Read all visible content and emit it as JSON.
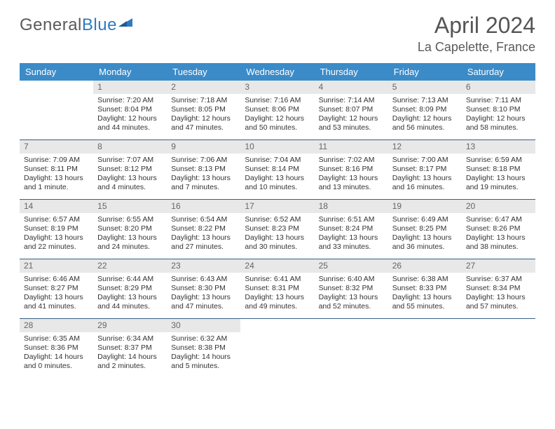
{
  "logo": {
    "text1": "General",
    "text2": "Blue"
  },
  "title": "April 2024",
  "location": "La Capelette, France",
  "colors": {
    "header_bg": "#3b8bc8",
    "header_text": "#ffffff",
    "daynum_bg": "#e8e8e8",
    "daynum_text": "#666666",
    "week_border": "#385f86",
    "logo_gray": "#5a5a5a",
    "logo_blue": "#2f7bbf"
  },
  "day_names": [
    "Sunday",
    "Monday",
    "Tuesday",
    "Wednesday",
    "Thursday",
    "Friday",
    "Saturday"
  ],
  "weeks": [
    [
      {
        "num": "",
        "sunrise": "",
        "sunset": "",
        "daylight1": "",
        "daylight2": ""
      },
      {
        "num": "1",
        "sunrise": "Sunrise: 7:20 AM",
        "sunset": "Sunset: 8:04 PM",
        "daylight1": "Daylight: 12 hours",
        "daylight2": "and 44 minutes."
      },
      {
        "num": "2",
        "sunrise": "Sunrise: 7:18 AM",
        "sunset": "Sunset: 8:05 PM",
        "daylight1": "Daylight: 12 hours",
        "daylight2": "and 47 minutes."
      },
      {
        "num": "3",
        "sunrise": "Sunrise: 7:16 AM",
        "sunset": "Sunset: 8:06 PM",
        "daylight1": "Daylight: 12 hours",
        "daylight2": "and 50 minutes."
      },
      {
        "num": "4",
        "sunrise": "Sunrise: 7:14 AM",
        "sunset": "Sunset: 8:07 PM",
        "daylight1": "Daylight: 12 hours",
        "daylight2": "and 53 minutes."
      },
      {
        "num": "5",
        "sunrise": "Sunrise: 7:13 AM",
        "sunset": "Sunset: 8:09 PM",
        "daylight1": "Daylight: 12 hours",
        "daylight2": "and 56 minutes."
      },
      {
        "num": "6",
        "sunrise": "Sunrise: 7:11 AM",
        "sunset": "Sunset: 8:10 PM",
        "daylight1": "Daylight: 12 hours",
        "daylight2": "and 58 minutes."
      }
    ],
    [
      {
        "num": "7",
        "sunrise": "Sunrise: 7:09 AM",
        "sunset": "Sunset: 8:11 PM",
        "daylight1": "Daylight: 13 hours",
        "daylight2": "and 1 minute."
      },
      {
        "num": "8",
        "sunrise": "Sunrise: 7:07 AM",
        "sunset": "Sunset: 8:12 PM",
        "daylight1": "Daylight: 13 hours",
        "daylight2": "and 4 minutes."
      },
      {
        "num": "9",
        "sunrise": "Sunrise: 7:06 AM",
        "sunset": "Sunset: 8:13 PM",
        "daylight1": "Daylight: 13 hours",
        "daylight2": "and 7 minutes."
      },
      {
        "num": "10",
        "sunrise": "Sunrise: 7:04 AM",
        "sunset": "Sunset: 8:14 PM",
        "daylight1": "Daylight: 13 hours",
        "daylight2": "and 10 minutes."
      },
      {
        "num": "11",
        "sunrise": "Sunrise: 7:02 AM",
        "sunset": "Sunset: 8:16 PM",
        "daylight1": "Daylight: 13 hours",
        "daylight2": "and 13 minutes."
      },
      {
        "num": "12",
        "sunrise": "Sunrise: 7:00 AM",
        "sunset": "Sunset: 8:17 PM",
        "daylight1": "Daylight: 13 hours",
        "daylight2": "and 16 minutes."
      },
      {
        "num": "13",
        "sunrise": "Sunrise: 6:59 AM",
        "sunset": "Sunset: 8:18 PM",
        "daylight1": "Daylight: 13 hours",
        "daylight2": "and 19 minutes."
      }
    ],
    [
      {
        "num": "14",
        "sunrise": "Sunrise: 6:57 AM",
        "sunset": "Sunset: 8:19 PM",
        "daylight1": "Daylight: 13 hours",
        "daylight2": "and 22 minutes."
      },
      {
        "num": "15",
        "sunrise": "Sunrise: 6:55 AM",
        "sunset": "Sunset: 8:20 PM",
        "daylight1": "Daylight: 13 hours",
        "daylight2": "and 24 minutes."
      },
      {
        "num": "16",
        "sunrise": "Sunrise: 6:54 AM",
        "sunset": "Sunset: 8:22 PM",
        "daylight1": "Daylight: 13 hours",
        "daylight2": "and 27 minutes."
      },
      {
        "num": "17",
        "sunrise": "Sunrise: 6:52 AM",
        "sunset": "Sunset: 8:23 PM",
        "daylight1": "Daylight: 13 hours",
        "daylight2": "and 30 minutes."
      },
      {
        "num": "18",
        "sunrise": "Sunrise: 6:51 AM",
        "sunset": "Sunset: 8:24 PM",
        "daylight1": "Daylight: 13 hours",
        "daylight2": "and 33 minutes."
      },
      {
        "num": "19",
        "sunrise": "Sunrise: 6:49 AM",
        "sunset": "Sunset: 8:25 PM",
        "daylight1": "Daylight: 13 hours",
        "daylight2": "and 36 minutes."
      },
      {
        "num": "20",
        "sunrise": "Sunrise: 6:47 AM",
        "sunset": "Sunset: 8:26 PM",
        "daylight1": "Daylight: 13 hours",
        "daylight2": "and 38 minutes."
      }
    ],
    [
      {
        "num": "21",
        "sunrise": "Sunrise: 6:46 AM",
        "sunset": "Sunset: 8:27 PM",
        "daylight1": "Daylight: 13 hours",
        "daylight2": "and 41 minutes."
      },
      {
        "num": "22",
        "sunrise": "Sunrise: 6:44 AM",
        "sunset": "Sunset: 8:29 PM",
        "daylight1": "Daylight: 13 hours",
        "daylight2": "and 44 minutes."
      },
      {
        "num": "23",
        "sunrise": "Sunrise: 6:43 AM",
        "sunset": "Sunset: 8:30 PM",
        "daylight1": "Daylight: 13 hours",
        "daylight2": "and 47 minutes."
      },
      {
        "num": "24",
        "sunrise": "Sunrise: 6:41 AM",
        "sunset": "Sunset: 8:31 PM",
        "daylight1": "Daylight: 13 hours",
        "daylight2": "and 49 minutes."
      },
      {
        "num": "25",
        "sunrise": "Sunrise: 6:40 AM",
        "sunset": "Sunset: 8:32 PM",
        "daylight1": "Daylight: 13 hours",
        "daylight2": "and 52 minutes."
      },
      {
        "num": "26",
        "sunrise": "Sunrise: 6:38 AM",
        "sunset": "Sunset: 8:33 PM",
        "daylight1": "Daylight: 13 hours",
        "daylight2": "and 55 minutes."
      },
      {
        "num": "27",
        "sunrise": "Sunrise: 6:37 AM",
        "sunset": "Sunset: 8:34 PM",
        "daylight1": "Daylight: 13 hours",
        "daylight2": "and 57 minutes."
      }
    ],
    [
      {
        "num": "28",
        "sunrise": "Sunrise: 6:35 AM",
        "sunset": "Sunset: 8:36 PM",
        "daylight1": "Daylight: 14 hours",
        "daylight2": "and 0 minutes."
      },
      {
        "num": "29",
        "sunrise": "Sunrise: 6:34 AM",
        "sunset": "Sunset: 8:37 PM",
        "daylight1": "Daylight: 14 hours",
        "daylight2": "and 2 minutes."
      },
      {
        "num": "30",
        "sunrise": "Sunrise: 6:32 AM",
        "sunset": "Sunset: 8:38 PM",
        "daylight1": "Daylight: 14 hours",
        "daylight2": "and 5 minutes."
      },
      {
        "num": "",
        "sunrise": "",
        "sunset": "",
        "daylight1": "",
        "daylight2": ""
      },
      {
        "num": "",
        "sunrise": "",
        "sunset": "",
        "daylight1": "",
        "daylight2": ""
      },
      {
        "num": "",
        "sunrise": "",
        "sunset": "",
        "daylight1": "",
        "daylight2": ""
      },
      {
        "num": "",
        "sunrise": "",
        "sunset": "",
        "daylight1": "",
        "daylight2": ""
      }
    ]
  ]
}
